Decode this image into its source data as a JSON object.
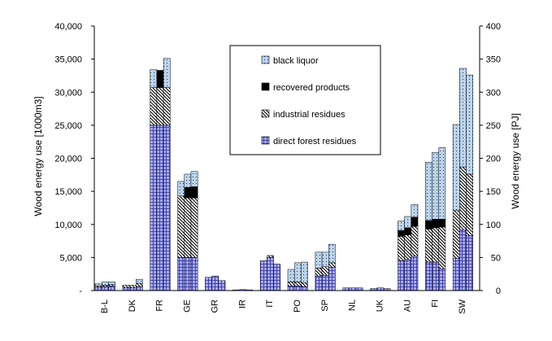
{
  "chart_data": {
    "type": "bar",
    "stacked": true,
    "categories": [
      "B-L",
      "DK",
      "FR",
      "GE",
      "GR",
      "IR",
      "IT",
      "PO",
      "SP",
      "NL",
      "UK",
      "AU",
      "FI",
      "SW"
    ],
    "bars_per_category": 3,
    "series": [
      {
        "name": "direct forest residues",
        "key": "direct",
        "color": "#a7a9f4",
        "pattern": "grid",
        "values": [
          [
            500,
            600,
            700
          ],
          [
            400,
            400,
            600
          ],
          [
            25000,
            25000,
            25000
          ],
          [
            5000,
            5000,
            5000
          ],
          [
            2000,
            2200,
            1500
          ],
          [
            100,
            150,
            100
          ],
          [
            4500,
            5000,
            4000
          ],
          [
            700,
            700,
            600
          ],
          [
            2200,
            2300,
            3500
          ],
          [
            400,
            400,
            400
          ],
          [
            300,
            400,
            300
          ],
          [
            4500,
            4700,
            5200
          ],
          [
            4300,
            4300,
            3300
          ],
          [
            4900,
            9200,
            8300
          ]
        ]
      },
      {
        "name": "industrial residues",
        "key": "industrial",
        "color": "#ffffff",
        "pattern": "hatch",
        "values": [
          [
            200,
            200,
            200
          ],
          [
            400,
            400,
            500
          ],
          [
            5700,
            5700,
            5700
          ],
          [
            9300,
            9000,
            9000
          ],
          [
            0,
            0,
            0
          ],
          [
            0,
            0,
            0
          ],
          [
            0,
            300,
            0
          ],
          [
            600,
            600,
            600
          ],
          [
            1200,
            1300,
            700
          ],
          [
            0,
            0,
            0
          ],
          [
            0,
            0,
            0
          ],
          [
            3700,
            3700,
            4500
          ],
          [
            5000,
            5200,
            6300
          ],
          [
            7200,
            9500,
            9300
          ]
        ]
      },
      {
        "name": "recovered products",
        "key": "recovered",
        "color": "#000000",
        "pattern": "solid",
        "values": [
          [
            0,
            0,
            0
          ],
          [
            0,
            0,
            0
          ],
          [
            0,
            2600,
            0
          ],
          [
            0,
            1600,
            1700
          ],
          [
            0,
            0,
            0
          ],
          [
            0,
            0,
            0
          ],
          [
            0,
            0,
            0
          ],
          [
            0,
            0,
            0
          ],
          [
            0,
            0,
            0
          ],
          [
            0,
            0,
            0
          ],
          [
            0,
            0,
            0
          ],
          [
            900,
            1100,
            1400
          ],
          [
            1300,
            1300,
            1200
          ],
          [
            0,
            0,
            0
          ]
        ]
      },
      {
        "name": "black liquor",
        "key": "black",
        "color": "#b9d4ef",
        "pattern": "dots",
        "values": [
          [
            300,
            500,
            400
          ],
          [
            0,
            0,
            600
          ],
          [
            2700,
            0,
            4400
          ],
          [
            2200,
            2000,
            2300
          ],
          [
            0,
            0,
            0
          ],
          [
            0,
            0,
            0
          ],
          [
            0,
            0,
            0
          ],
          [
            1900,
            2900,
            3100
          ],
          [
            2400,
            2200,
            2800
          ],
          [
            0,
            0,
            0
          ],
          [
            0,
            0,
            0
          ],
          [
            1400,
            1700,
            1900
          ],
          [
            8800,
            10100,
            10800
          ],
          [
            13000,
            14900,
            15000
          ]
        ]
      }
    ],
    "left_axis": {
      "label": "Wood energy use [1000m3]",
      "ylim": [
        0,
        40000
      ],
      "ticks": [
        0,
        5000,
        10000,
        15000,
        20000,
        25000,
        30000,
        35000,
        40000
      ],
      "tick_labels": [
        "-",
        "5,000",
        "10,000",
        "15,000",
        "20,000",
        "25,000",
        "30,000",
        "35,000",
        "40,000"
      ]
    },
    "right_axis": {
      "label": "Wood energy use [PJ]",
      "ylim": [
        0,
        400
      ],
      "ticks": [
        0,
        50,
        100,
        150,
        200,
        250,
        300,
        350,
        400
      ],
      "tick_labels": [
        "0",
        "50",
        "100",
        "150",
        "200",
        "250",
        "300",
        "350",
        "400"
      ]
    },
    "legend": {
      "position": "top-center",
      "order": [
        "black liquor",
        "recovered products",
        "industrial residues",
        "direct forest residues"
      ]
    }
  }
}
